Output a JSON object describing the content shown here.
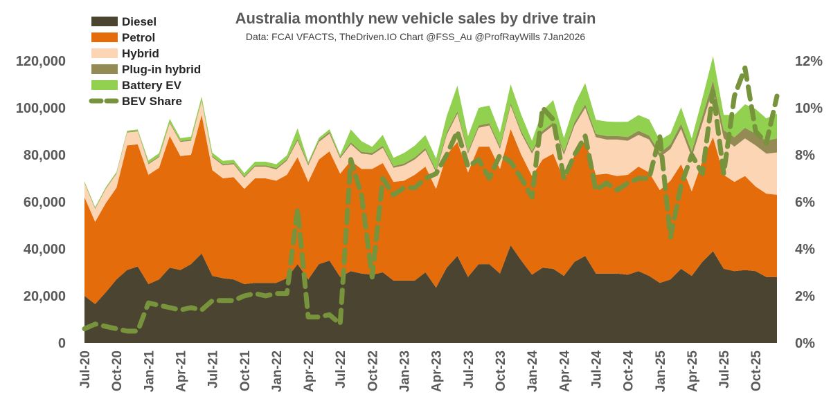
{
  "chart_data": {
    "type": "area",
    "title": "Australia monthly new vehicle sales by drive train",
    "subtitle": "Data: FCAI VFACTS, TheDriven.IO  Chart @FSS_Au @ProfRayWills 7Jan2026",
    "stacked": true,
    "ylim": [
      0,
      120000
    ],
    "y_ticks": [
      "0",
      "20,000",
      "40,000",
      "60,000",
      "80,000",
      "100,000",
      "120,000"
    ],
    "y2lim": [
      0,
      12
    ],
    "y2_ticks": [
      "0%",
      "2%",
      "4%",
      "6%",
      "8%",
      "10%",
      "12%"
    ],
    "x_tick_labels": [
      "Jul-20",
      "Oct-20",
      "Jan-21",
      "Apr-21",
      "Jul-21",
      "Oct-21",
      "Jan-22",
      "Apr-22",
      "Jul-22",
      "Oct-22",
      "Jan-23",
      "Apr-23",
      "Jul-23",
      "Oct-23",
      "Jan-24",
      "Apr-24",
      "Jul-24",
      "Oct-24",
      "Jan-25",
      "Apr-25",
      "Jul-25",
      "Oct-25"
    ],
    "x_tick_every": 3,
    "months_count": 66,
    "legend_position": "top-left",
    "series": [
      {
        "name": "Diesel",
        "color": "#4b4431",
        "kind": "area",
        "values": [
          20000,
          16500,
          21500,
          27000,
          31000,
          32500,
          25000,
          27000,
          32000,
          31000,
          33500,
          38000,
          28500,
          27500,
          27000,
          25000,
          25500,
          25500,
          25500,
          27500,
          33500,
          27000,
          33500,
          35000,
          28000,
          30500,
          29500,
          29000,
          30000,
          26500,
          26500,
          26500,
          30000,
          23500,
          32000,
          37000,
          28000,
          33500,
          33500,
          29500,
          41500,
          35000,
          29000,
          32000,
          31500,
          28500,
          34500,
          37000,
          29500,
          29500,
          29500,
          29000,
          30500,
          28500,
          25500,
          27000,
          31500,
          28500,
          34500,
          39000,
          31500,
          30500,
          31000,
          30500,
          28000,
          28000
        ]
      },
      {
        "name": "Petrol",
        "color": "#e46c0a",
        "kind": "area",
        "values": [
          42000,
          35000,
          38000,
          39000,
          53000,
          52000,
          46500,
          47500,
          56000,
          48500,
          46500,
          59000,
          45000,
          42500,
          43500,
          40500,
          44500,
          44500,
          43500,
          44000,
          45500,
          41500,
          44500,
          46500,
          44000,
          47000,
          44500,
          45000,
          46500,
          42000,
          42500,
          45000,
          45000,
          42000,
          48000,
          48500,
          44500,
          50000,
          50000,
          44500,
          49500,
          45000,
          42000,
          46000,
          49000,
          41000,
          45500,
          49000,
          42000,
          42500,
          41500,
          42500,
          44500,
          44000,
          39500,
          42000,
          44500,
          36000,
          43000,
          48500,
          40000,
          38000,
          40000,
          36000,
          35500,
          35000
        ]
      },
      {
        "name": "Hybrid",
        "color": "#fcd5b5",
        "kind": "area",
        "values": [
          6000,
          5500,
          6000,
          6000,
          5500,
          5500,
          4500,
          4500,
          5500,
          6000,
          6000,
          6000,
          5500,
          5500,
          5500,
          4800,
          5000,
          5000,
          4800,
          6000,
          7000,
          7000,
          7500,
          7500,
          6500,
          7000,
          6500,
          6000,
          6500,
          6000,
          6500,
          6500,
          7000,
          7000,
          8500,
          12000,
          8000,
          8000,
          9000,
          8500,
          10000,
          9000,
          9500,
          11000,
          12000,
          10500,
          12500,
          14000,
          16000,
          14500,
          15500,
          14500,
          13500,
          14000,
          14000,
          13500,
          15000,
          14500,
          16000,
          20500,
          15500,
          15000,
          16000,
          17500,
          17000,
          18000
        ]
      },
      {
        "name": "Plug-in hybrid",
        "color": "#948a54",
        "kind": "area",
        "values": [
          300,
          300,
          300,
          300,
          300,
          300,
          400,
          400,
          400,
          400,
          400,
          400,
          500,
          500,
          500,
          500,
          500,
          500,
          600,
          600,
          800,
          700,
          700,
          800,
          700,
          800,
          800,
          800,
          800,
          700,
          800,
          900,
          900,
          900,
          1000,
          1000,
          900,
          1000,
          1000,
          1000,
          1000,
          1000,
          1000,
          1200,
          1300,
          1200,
          1400,
          1500,
          1400,
          1500,
          1500,
          1600,
          1700,
          1700,
          1700,
          2000,
          2200,
          2500,
          3000,
          3500,
          3500,
          4000,
          4500,
          5000,
          5500,
          6000
        ]
      },
      {
        "name": "Battery EV",
        "color": "#92d050",
        "kind": "area",
        "values": [
          400,
          450,
          450,
          450,
          450,
          500,
          1200,
          1300,
          1400,
          1200,
          1300,
          1400,
          1400,
          1400,
          1400,
          1400,
          1600,
          1600,
          1600,
          1700,
          4500,
          800,
          1000,
          1100,
          800,
          5500,
          4500,
          2600,
          4700,
          3500,
          4500,
          5000,
          5500,
          5000,
          7000,
          11000,
          6500,
          7500,
          7500,
          6000,
          8000,
          7000,
          4500,
          8500,
          9500,
          6000,
          7500,
          9000,
          6000,
          6200,
          6000,
          6500,
          6700,
          6900,
          5500,
          4500,
          7000,
          5500,
          7500,
          10500,
          6500,
          9500,
          10000,
          10500,
          9500,
          10500
        ]
      },
      {
        "name": "BEV Share",
        "color": "#77933c",
        "kind": "line",
        "axis": "right",
        "values_percent": [
          0.6,
          0.8,
          0.7,
          0.6,
          0.5,
          0.5,
          1.7,
          1.6,
          1.5,
          1.4,
          1.5,
          1.4,
          1.8,
          1.8,
          1.8,
          2.0,
          2.1,
          2.0,
          2.1,
          2.1,
          5.7,
          1.1,
          1.1,
          1.2,
          0.8,
          7.8,
          6.3,
          2.8,
          7.0,
          6.3,
          6.6,
          6.6,
          7.0,
          7.2,
          8.0,
          9.0,
          7.5,
          7.8,
          7.0,
          8.0,
          7.7,
          7.0,
          6.2,
          10.0,
          9.5,
          7.0,
          8.0,
          8.8,
          6.5,
          6.8,
          6.5,
          6.8,
          7.0,
          7.0,
          8.8,
          4.5,
          6.7,
          8.0,
          7.2,
          10.7,
          7.2,
          10.5,
          11.7,
          9.0,
          8.5,
          10.5
        ]
      }
    ]
  }
}
